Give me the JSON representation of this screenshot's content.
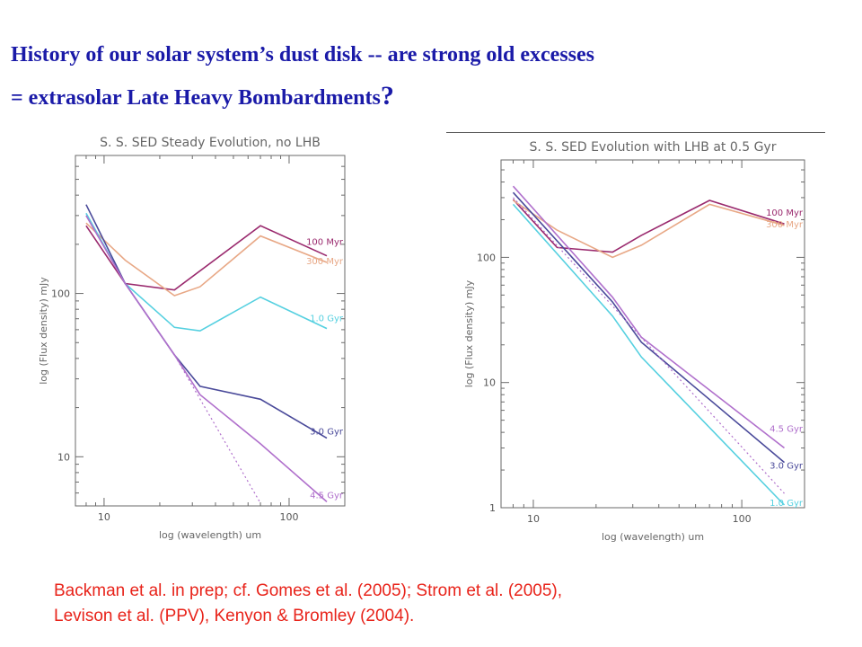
{
  "title": {
    "line1": "History of our  solar system’s dust disk -- are strong old excesses",
    "line2": "= extrasolar Late Heavy Bombardments",
    "qmark": "?"
  },
  "caption": {
    "line1": "Backman et al. in prep;  cf. Gomes et al. (2005); Strom et al. (2005),",
    "line2": "Levison et al. (PPV), Kenyon & Bromley (2004)."
  },
  "chart_data": [
    {
      "type": "line",
      "title": "S. S. SED Steady Evolution, no LHB",
      "xlabel": "log (wavelength) um",
      "ylabel": "log (Flux density) mJy",
      "xscale": "log",
      "yscale": "log",
      "xlim": [
        7,
        200
      ],
      "ylim": [
        5,
        700
      ],
      "xticks": [
        {
          "v": 10,
          "label": "10"
        },
        {
          "v": 100,
          "label": "100"
        }
      ],
      "yticks": [
        {
          "v": 10,
          "label": "10"
        },
        {
          "v": 100,
          "label": "100"
        }
      ],
      "series": [
        {
          "name": "100 Myr",
          "color": "#9a2a6e",
          "x": [
            8,
            13,
            24,
            70,
            160
          ],
          "y": [
            260,
            115,
            105,
            260,
            170
          ]
        },
        {
          "name": "300 Myr",
          "color": "#e8a886",
          "x": [
            8,
            13,
            24,
            33,
            70,
            160
          ],
          "y": [
            270,
            160,
            97,
            110,
            225,
            155
          ]
        },
        {
          "name": "1.0 Gyr",
          "color": "#55d0e0",
          "x": [
            8,
            13,
            24,
            33,
            70,
            160
          ],
          "y": [
            310,
            115,
            62,
            59,
            95,
            61
          ]
        },
        {
          "name": "3.0 Gyr",
          "color": "#4a4a9a",
          "x": [
            8,
            13,
            24,
            33,
            70,
            160
          ],
          "y": [
            350,
            115,
            42,
            27,
            22.5,
            13
          ]
        },
        {
          "name": "4.5 Gyr",
          "color": "#b070cc",
          "x": [
            8,
            13,
            24,
            33,
            70,
            160
          ],
          "y": [
            300,
            115,
            42,
            24,
            12,
            5.3
          ]
        },
        {
          "name": "",
          "color": "#b070cc",
          "dashed": true,
          "x": [
            8,
            13,
            24,
            70
          ],
          "y": [
            300,
            115,
            42,
            5.2
          ]
        }
      ]
    },
    {
      "type": "line",
      "title": "S. S. SED Evolution with LHB at 0.5 Gyr",
      "xlabel": "log (wavelength) um",
      "ylabel": "log (Flux density) mJy",
      "xscale": "log",
      "yscale": "log",
      "xlim": [
        7,
        200
      ],
      "ylim": [
        1,
        600
      ],
      "xticks": [
        {
          "v": 10,
          "label": "10"
        },
        {
          "v": 100,
          "label": "100"
        }
      ],
      "yticks": [
        {
          "v": 1,
          "label": "1"
        },
        {
          "v": 10,
          "label": "10"
        },
        {
          "v": 100,
          "label": "100"
        }
      ],
      "series": [
        {
          "name": "100 Myr",
          "color": "#9a2a6e",
          "x": [
            8,
            13,
            24,
            33,
            70,
            160
          ],
          "y": [
            290,
            120,
            110,
            150,
            285,
            185
          ]
        },
        {
          "name": "300 Myr",
          "color": "#e8a886",
          "x": [
            8,
            13,
            24,
            33,
            70,
            160
          ],
          "y": [
            285,
            165,
            100,
            125,
            265,
            180
          ]
        },
        {
          "name": "4.5 Gyr",
          "color": "#b070cc",
          "x": [
            8,
            24,
            33,
            160
          ],
          "y": [
            370,
            48,
            23,
            3.0
          ]
        },
        {
          "name": "3.0 Gyr",
          "color": "#4a4a9a",
          "x": [
            8,
            24,
            33,
            160
          ],
          "y": [
            330,
            44,
            21,
            2.3
          ]
        },
        {
          "name": "1.0 Gyr",
          "color": "#55d0e0",
          "x": [
            8,
            24,
            33,
            160
          ],
          "y": [
            265,
            34,
            16,
            1.05
          ]
        },
        {
          "name": "",
          "color": "#b070cc",
          "dashed": true,
          "x": [
            8,
            160
          ],
          "y": [
            300,
            1.3
          ]
        }
      ]
    }
  ]
}
